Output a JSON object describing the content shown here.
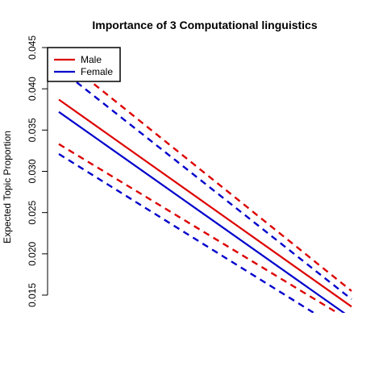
{
  "chart_data": {
    "type": "line",
    "title": "Importance of 3 Computational linguistics",
    "xlabel": "",
    "ylabel": "Expected Topic Proportion",
    "xlim": [
      0,
      1
    ],
    "ylim": [
      0.015,
      0.045
    ],
    "yticks": [
      "0.015",
      "0.020",
      "0.025",
      "0.030",
      "0.035",
      "0.040",
      "0.045"
    ],
    "grid": false,
    "legend_position": "top-left",
    "x": [
      0,
      1
    ],
    "series": [
      {
        "name": "Male",
        "color": "#dd0000",
        "style": "solid",
        "values": [
          0.0387,
          0.0136
        ]
      },
      {
        "name": "Male",
        "color": "#dd0000",
        "style": "dashed",
        "role": "upper",
        "legend": false,
        "values": [
          0.044,
          0.0155
        ]
      },
      {
        "name": "Male",
        "color": "#dd0000",
        "style": "dashed",
        "role": "lower",
        "legend": false,
        "values": [
          0.0333,
          0.0118
        ]
      },
      {
        "name": "Female",
        "color": "#0000cc",
        "style": "solid",
        "values": [
          0.0372,
          0.0122
        ]
      },
      {
        "name": "Female",
        "color": "#0000cc",
        "style": "dashed",
        "role": "upper",
        "legend": false,
        "values": [
          0.0425,
          0.0145
        ]
      },
      {
        "name": "Female",
        "color": "#0000cc",
        "style": "dashed",
        "role": "lower",
        "legend": false,
        "values": [
          0.0321,
          0.01
        ]
      }
    ]
  }
}
